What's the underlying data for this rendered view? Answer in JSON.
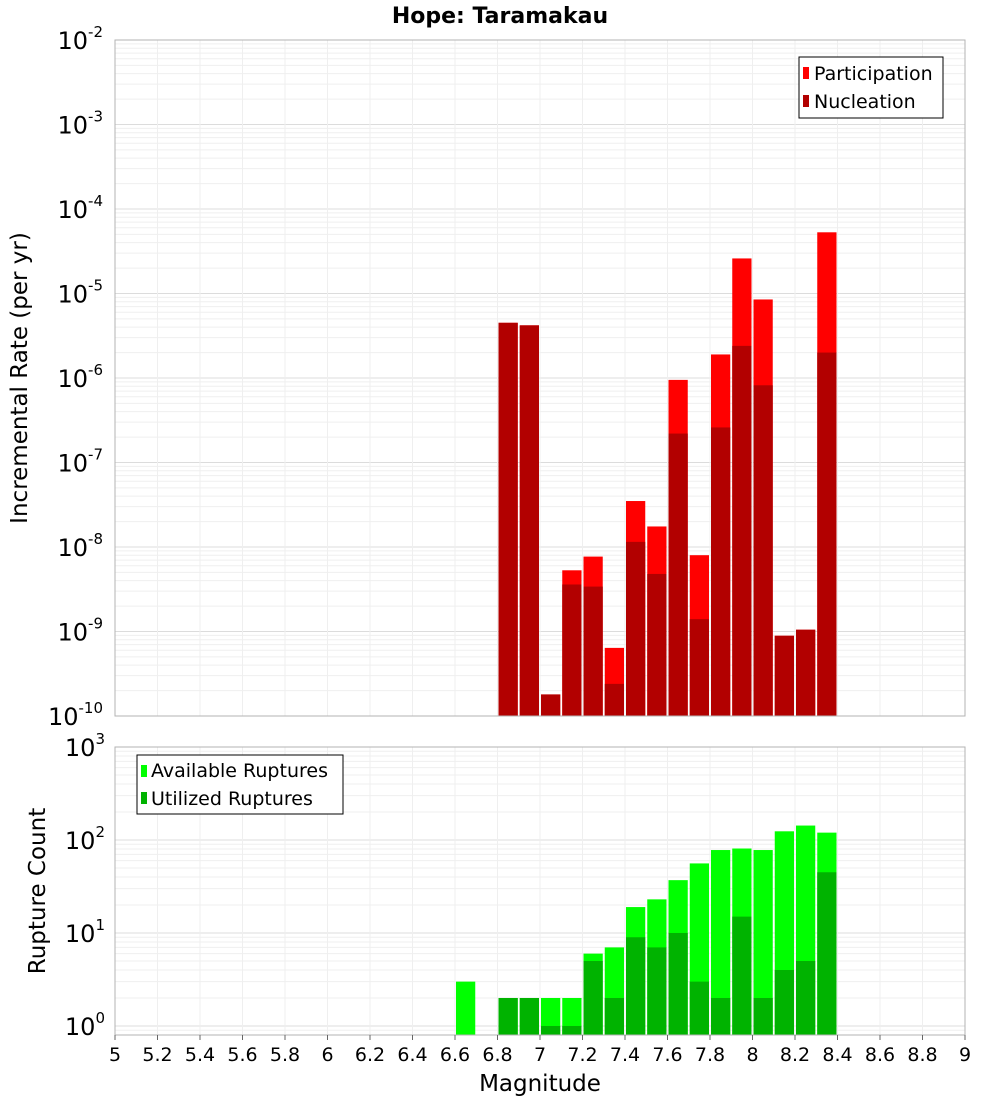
{
  "chart_data": [
    {
      "type": "bar",
      "title": "Hope: Taramakau",
      "xlabel": "Magnitude",
      "ylabel": "Incremental Rate (per yr)",
      "yscale": "log",
      "xlim": [
        5,
        9
      ],
      "ylim": [
        1e-10,
        0.01
      ],
      "ytick_exponents": [
        "-2",
        "-3",
        "-4",
        "-5",
        "-6",
        "-7",
        "-8",
        "-9",
        "-10"
      ],
      "grid": true,
      "legend_position": "top-right",
      "series": [
        {
          "name": "Participation",
          "color": "#ff0000",
          "x": [
            6.85,
            6.95,
            7.05,
            7.15,
            7.25,
            7.35,
            7.45,
            7.55,
            7.65,
            7.75,
            7.85,
            7.95,
            8.05,
            8.15,
            8.25,
            8.35
          ],
          "values": [
            4.5e-06,
            4.2e-06,
            1.8e-10,
            5.3e-09,
            7.7e-09,
            6.4e-10,
            3.5e-08,
            1.75e-08,
            9.5e-07,
            8e-09,
            1.9e-06,
            2.6e-05,
            8.5e-06,
            8.9e-10,
            1.05e-09,
            5.3e-05
          ]
        },
        {
          "name": "Nucleation",
          "color": "#b20000",
          "x": [
            6.85,
            6.95,
            7.05,
            7.15,
            7.25,
            7.35,
            7.45,
            7.55,
            7.65,
            7.75,
            7.85,
            7.95,
            8.05,
            8.15,
            8.25,
            8.35
          ],
          "values": [
            4.5e-06,
            4.2e-06,
            1.8e-10,
            3.6e-09,
            3.4e-09,
            2.4e-10,
            1.15e-08,
            4.8e-09,
            2.2e-07,
            1.4e-09,
            2.6e-07,
            2.4e-06,
            8.2e-07,
            8.9e-10,
            1.05e-09,
            2e-06
          ]
        }
      ]
    },
    {
      "type": "bar",
      "xlabel": "Magnitude",
      "ylabel": "Rupture Count",
      "yscale": "log",
      "xlim": [
        5,
        9
      ],
      "ylim": [
        0.8,
        1000
      ],
      "xticks": [
        "5",
        "5.2",
        "5.4",
        "5.6",
        "5.8",
        "6",
        "6.2",
        "6.4",
        "6.6",
        "6.8",
        "7",
        "7.2",
        "7.4",
        "7.6",
        "7.8",
        "8",
        "8.2",
        "8.4",
        "8.6",
        "8.8",
        "9"
      ],
      "ytick_exponents": [
        "3",
        "2",
        "1",
        "0"
      ],
      "grid": true,
      "legend_position": "top-left",
      "series": [
        {
          "name": "Available Ruptures",
          "color": "#00ff00",
          "x": [
            6.65,
            6.85,
            6.95,
            7.05,
            7.15,
            7.25,
            7.35,
            7.45,
            7.55,
            7.65,
            7.75,
            7.85,
            7.95,
            8.05,
            8.15,
            8.25,
            8.35
          ],
          "values": [
            3,
            2,
            2,
            2,
            2,
            6,
            7,
            19,
            23,
            37,
            56,
            78,
            81,
            78,
            124,
            143,
            120
          ]
        },
        {
          "name": "Utilized Ruptures",
          "color": "#00b300",
          "x": [
            6.65,
            6.85,
            6.95,
            7.05,
            7.15,
            7.25,
            7.35,
            7.45,
            7.55,
            7.65,
            7.75,
            7.85,
            7.95,
            8.05,
            8.15,
            8.25,
            8.35
          ],
          "values": [
            0,
            2,
            2,
            1,
            1,
            5,
            2,
            9,
            7,
            10,
            3,
            2,
            15,
            2,
            4,
            5,
            45
          ]
        }
      ]
    }
  ]
}
